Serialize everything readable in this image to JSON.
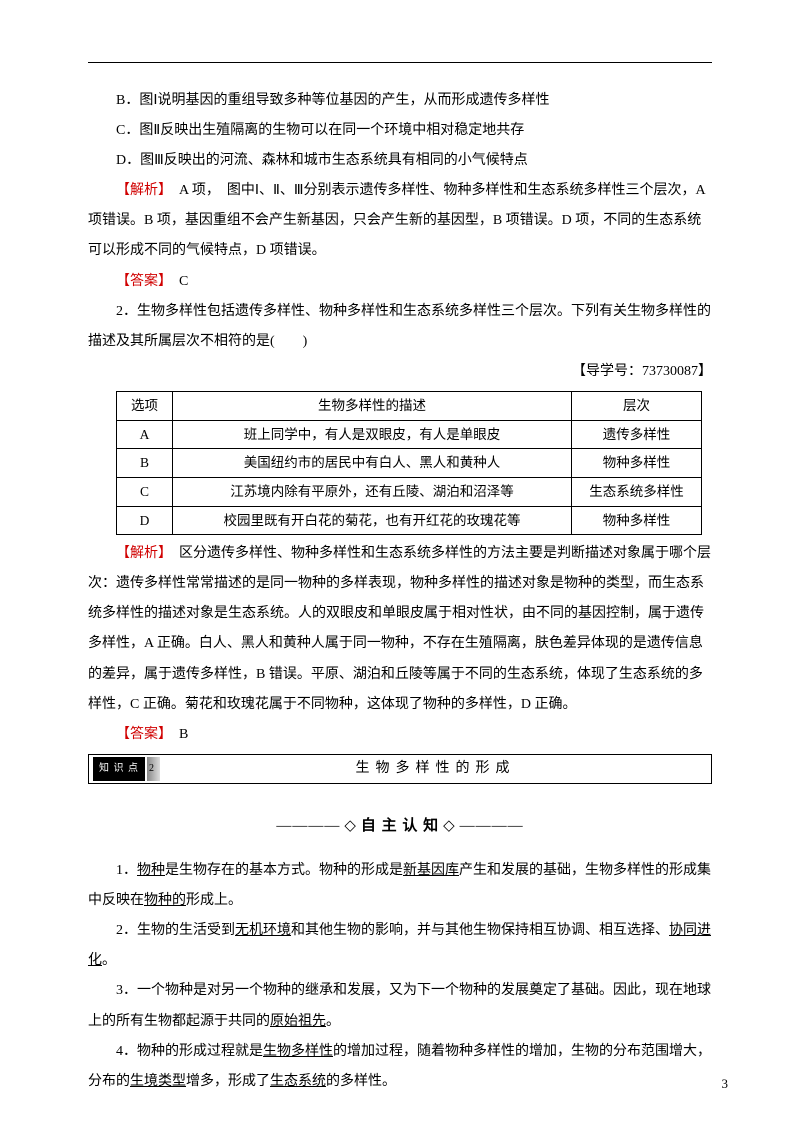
{
  "colors": {
    "text": "#000000",
    "red": "#d00000",
    "background": "#ffffff"
  },
  "options": {
    "B": "B．图Ⅰ说明基因的重组导致多种等位基因的产生，从而形成遗传多样性",
    "C": "C．图Ⅱ反映出生殖隔离的生物可以在同一个环境中相对稳定地共存",
    "D": "D．图Ⅲ反映出的河流、森林和城市生态系统具有相同的小气候特点"
  },
  "analysis1": {
    "tag": "【解析】",
    "text": "　A 项，　图中Ⅰ、Ⅱ、Ⅲ分别表示遗传多样性、物种多样性和生态系统多样性三个层次，A 项错误。B 项，基因重组不会产生新基因，只会产生新的基因型，B 项错误。D 项，不同的生态系统可以形成不同的气候特点，D 项错误。"
  },
  "answer1": {
    "tag": "【答案】",
    "text": "　C"
  },
  "q2": {
    "stem": "2．生物多样性包括遗传多样性、物种多样性和生态系统多样性三个层次。下列有关生物多样性的描述及其所属层次不相符的是(　　)",
    "ref": "【导学号：73730087】"
  },
  "table": {
    "headers": [
      "选项",
      "生物多样性的描述",
      "层次"
    ],
    "rows": [
      [
        "A",
        "班上同学中，有人是双眼皮，有人是单眼皮",
        "遗传多样性"
      ],
      [
        "B",
        "美国纽约市的居民中有白人、黑人和黄种人",
        "物种多样性"
      ],
      [
        "C",
        "江苏境内除有平原外，还有丘陵、湖泊和沼泽等",
        "生态系统多样性"
      ],
      [
        "D",
        "校园里既有开白花的菊花，也有开红花的玫瑰花等",
        "物种多样性"
      ]
    ]
  },
  "analysis2": {
    "tag": "【解析】",
    "text": "　区分遗传多样性、物种多样性和生态系统多样性的方法主要是判断描述对象属于哪个层次：遗传多样性常常描述的是同一物种的多样表现，物种多样性的描述对象是物种的类型，而生态系统多样性的描述对象是生态系统。人的双眼皮和单眼皮属于相对性状，由不同的基因控制，属于遗传多样性，A 正确。白人、黑人和黄种人属于同一物种，不存在生殖隔离，肤色差异体现的是遗传信息的差异，属于遗传多样性，B 错误。平原、湖泊和丘陵等属于不同的生态系统，体现了生态系统的多样性，C 正确。菊花和玫瑰花属于不同物种，这体现了物种的多样性，D 正确。"
  },
  "answer2": {
    "tag": "【答案】",
    "text": "　B"
  },
  "knowledge": {
    "tag": "知 识 点",
    "num": "2",
    "title": "生物多样性的形成"
  },
  "section": {
    "left": "————",
    "diamond": "◇",
    "title": "自 主 认 知",
    "right": "————"
  },
  "cognition": {
    "p1a": "1．",
    "p1u1": "物种",
    "p1b": "是生物存在的基本方式。物种的形成是",
    "p1u2": "新基因库",
    "p1c": "产生和发展的基础，生物多样性的形成集中反映在",
    "p1u3": "物种的",
    "p1d": "形成上。",
    "p2a": "2．生物的生活受到",
    "p2u1": "无机环境",
    "p2b": "和其他生物的影响，并与其他生物保持相互协调、相互选择、",
    "p2u2": "协同进化",
    "p2c": "。",
    "p3a": "3．一个物种是对另一个物种的继承和发展，又为下一个物种的发展奠定了基础。因此，现在地球上的所有生物都起源于共同的",
    "p3u1": "原始祖先",
    "p3b": "。",
    "p4a": "4．物种的形成过程就是",
    "p4u1": "生物多样性",
    "p4b": "的增加过程，随着物种多样性的增加，生物的分布范围增大，分布的",
    "p4u2": "生境类型",
    "p4c": "增多，形成了",
    "p4u3": "生态系统",
    "p4d": "的多样性。"
  },
  "page_number": "3"
}
